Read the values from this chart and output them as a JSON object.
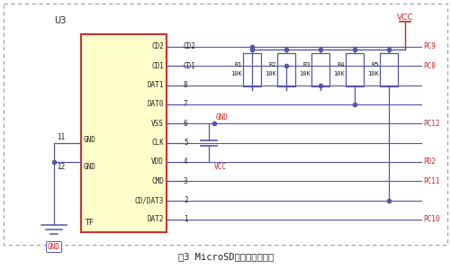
{
  "title": "图3 MicroSD卡的硬件连接图",
  "wire_color": "#5555aa",
  "ic_fill": "#ffffcc",
  "ic_stroke": "#cc3333",
  "red_text": "#cc2222",
  "black_text": "#222222",
  "border_color": "#aaaacc",
  "vcc_color": "#cc2222",
  "gnd_color": "#cc2222",
  "pc_color": "#cc2222",
  "resistors": [
    "R1",
    "R2",
    "R3",
    "R4",
    "R5"
  ],
  "res_values": [
    "10K",
    "10K",
    "10K",
    "10K",
    "10K"
  ],
  "pin_labels_right": [
    "CD2",
    "CD1",
    "DAT1",
    "DAT0",
    "VSS",
    "CLK",
    "VDD",
    "CMD",
    "CD/DAT3",
    "DAT2"
  ],
  "pin_nums": [
    "CD2",
    "CD1",
    "8",
    "7",
    "6",
    "5",
    "4",
    "3",
    "2",
    "1"
  ],
  "pin_labels_left": [
    "GND",
    "GND"
  ],
  "left_nums": [
    "11",
    "12"
  ],
  "pc_labels": [
    "PC9",
    "PC8",
    "PC12",
    "PD2",
    "PC11",
    "PC10"
  ]
}
